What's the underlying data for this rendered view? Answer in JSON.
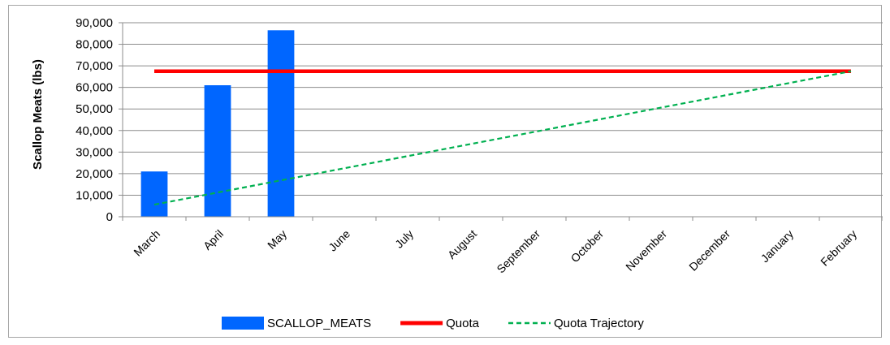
{
  "chart_data": {
    "type": "bar",
    "ylabel": "Scallop Meats (lbs)",
    "xlabel": "",
    "ylim": [
      0,
      90000
    ],
    "ytick_step": 10000,
    "ytick_labels": [
      "0",
      "10,000",
      "20,000",
      "30,000",
      "40,000",
      "50,000",
      "60,000",
      "70,000",
      "80,000",
      "90,000"
    ],
    "grid": "horizontal",
    "legend_position": "bottom",
    "categories": [
      "March",
      "April",
      "May",
      "June",
      "July",
      "August",
      "September",
      "October",
      "November",
      "December",
      "January",
      "February"
    ],
    "series": [
      {
        "name": "SCALLOP_MEATS",
        "type": "bar",
        "color": "#0066ff",
        "values": [
          21000,
          61000,
          86500,
          null,
          null,
          null,
          null,
          null,
          null,
          null,
          null,
          null
        ]
      },
      {
        "name": "Quota",
        "type": "line",
        "color": "#ff0000",
        "style": "solid",
        "values": [
          67500,
          67500,
          67500,
          67500,
          67500,
          67500,
          67500,
          67500,
          67500,
          67500,
          67500,
          67500
        ]
      },
      {
        "name": "Quota Trajectory",
        "type": "line",
        "color": "#00b050",
        "style": "dashed",
        "values": [
          5625,
          11250,
          16875,
          22500,
          28125,
          33750,
          39375,
          45000,
          50625,
          56250,
          61875,
          67500
        ]
      }
    ]
  }
}
